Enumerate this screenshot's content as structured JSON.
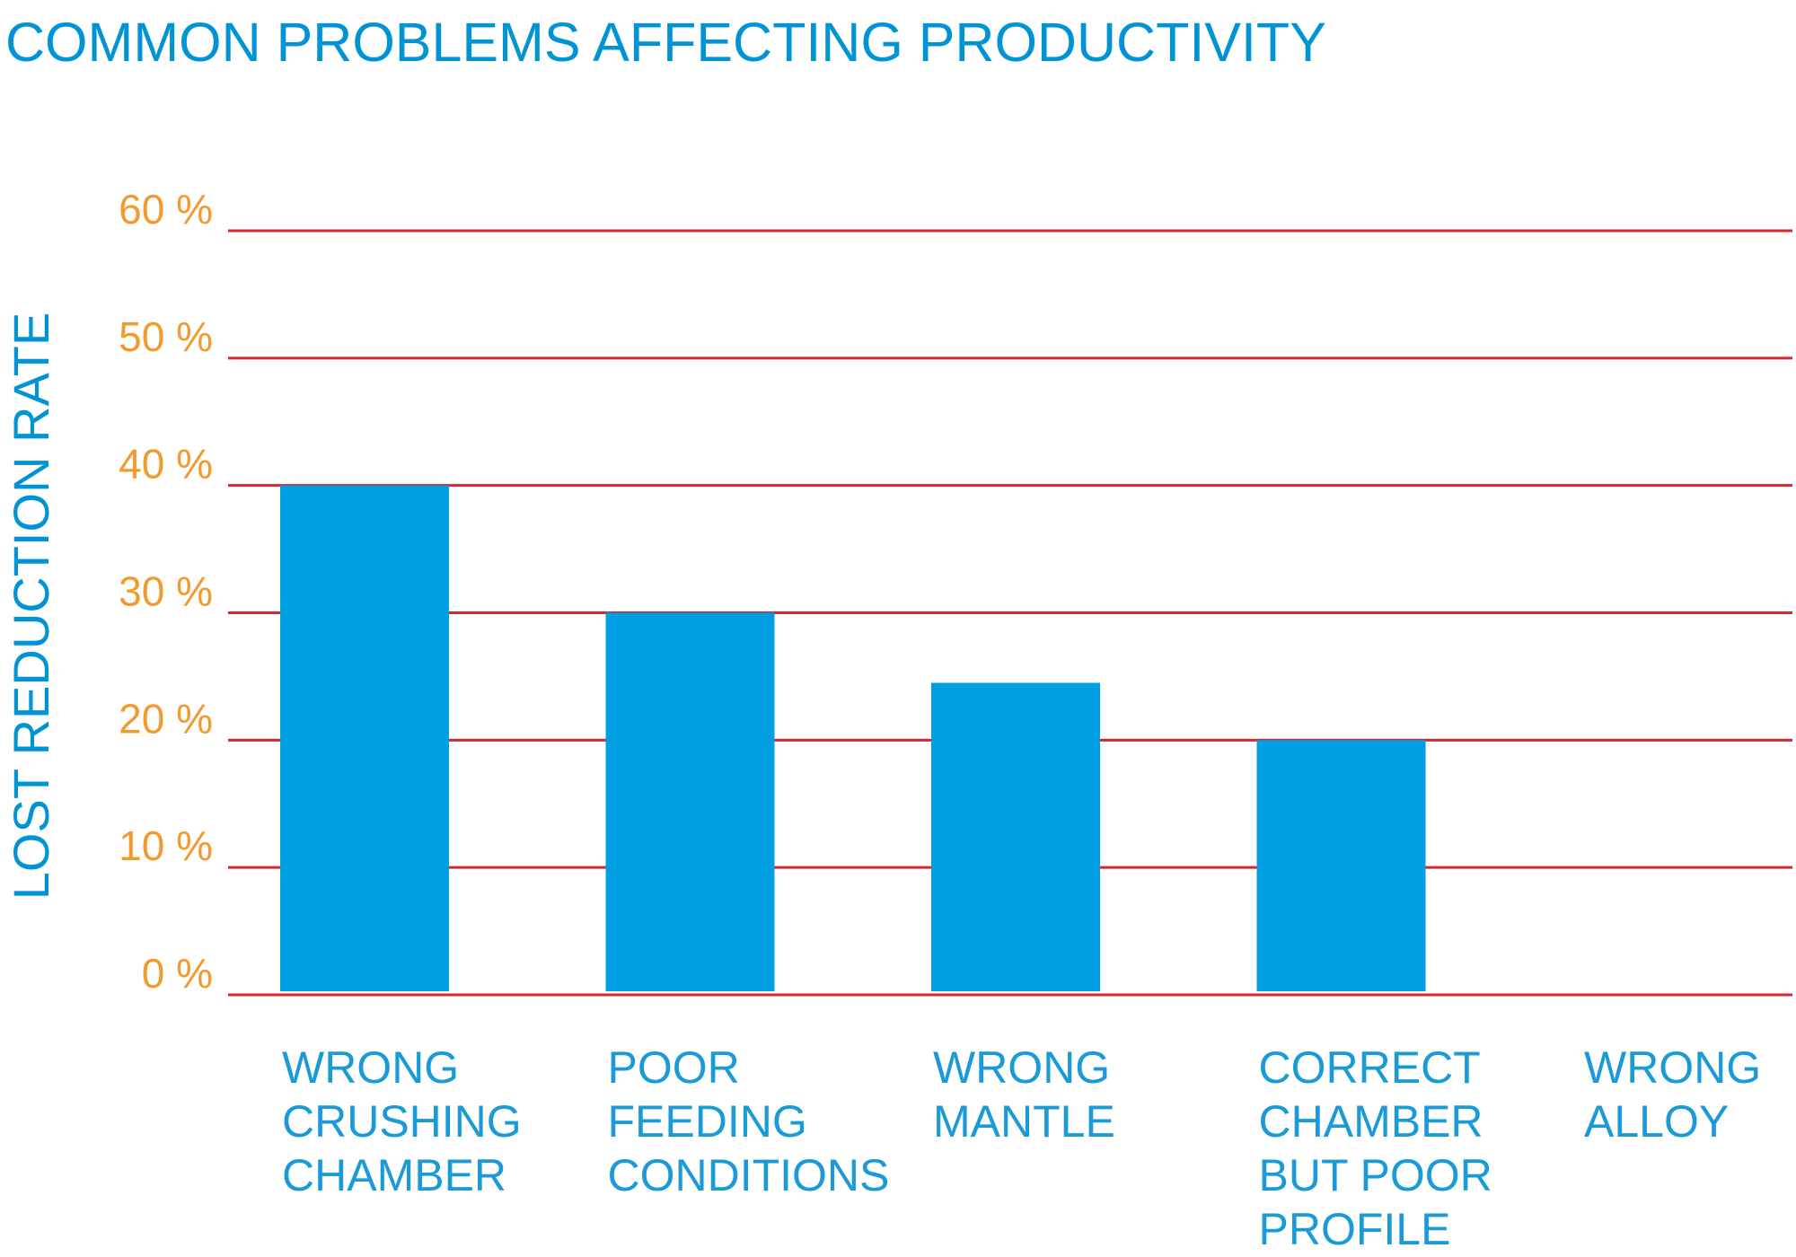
{
  "chart_data": {
    "type": "bar",
    "title": "COMMON PROBLEMS AFFECTING PRODUCTIVITY",
    "xlabel": "",
    "ylabel": "LOST REDUCTION RATE",
    "categories": [
      [
        "WRONG",
        "CRUSHING",
        "CHAMBER"
      ],
      [
        "POOR",
        "FEEDING",
        "CONDITIONS"
      ],
      [
        "WRONG",
        "MANTLE"
      ],
      [
        "CORRECT",
        "CHAMBER",
        "BUT POOR",
        "PROFILE"
      ],
      [
        "WRONG",
        "ALLOY"
      ]
    ],
    "values": [
      40,
      30,
      24.5,
      20,
      0
    ],
    "ylim": [
      0,
      60
    ],
    "yticks": [
      0,
      10,
      20,
      30,
      40,
      50,
      60
    ],
    "ytick_labels": [
      "0 %",
      "10 %",
      "20 %",
      "30 %",
      "40 %",
      "50 %",
      "60 %"
    ],
    "grid": true,
    "colors": {
      "bar": "#009fe3",
      "grid": "#d7262e",
      "tick_label": "#f39a2e",
      "title": "#0094d4",
      "category_label": "#1a9ad6"
    }
  }
}
